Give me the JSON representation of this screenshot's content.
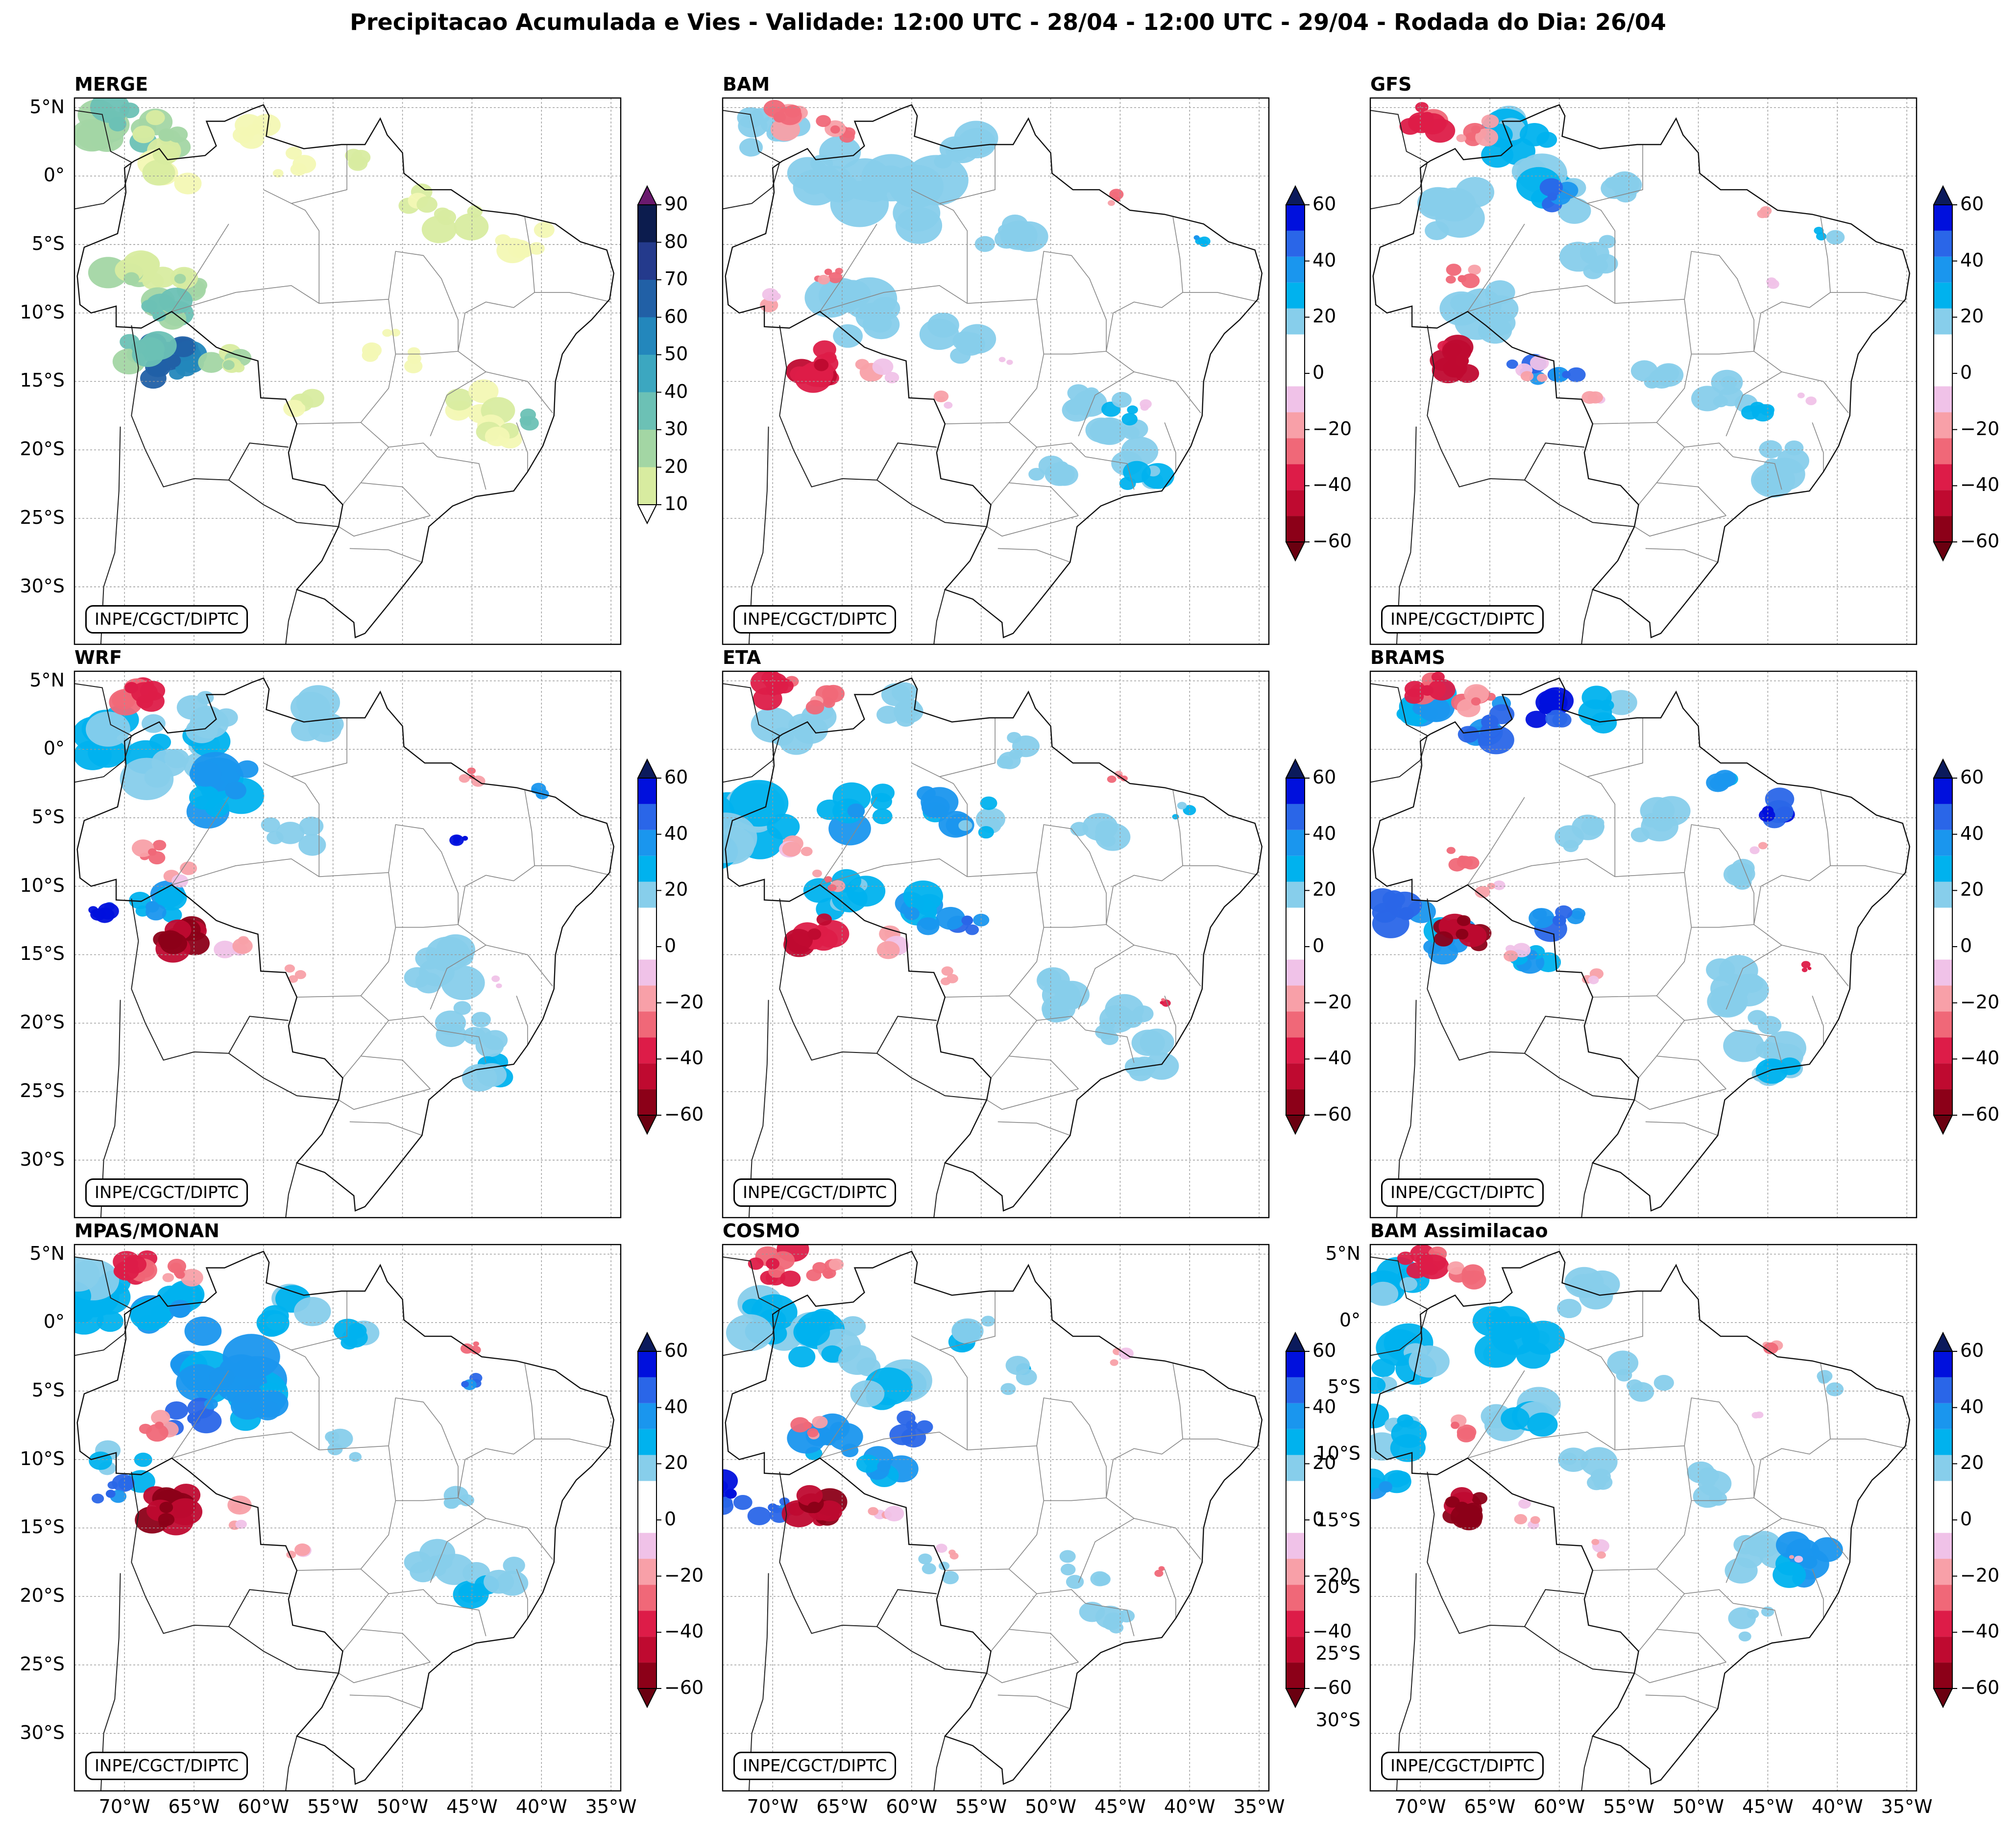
{
  "title": "Precipitacao Acumulada e Vies - Validade: 12:00 UTC - 28/04 - 12:00 UTC - 29/04 - Rodada do Dia: 26/04",
  "credit": "INPE/CGCT/DIPTC",
  "lat_labels": [
    "5°N",
    "0°",
    "5°S",
    "10°S",
    "15°S",
    "20°S",
    "25°S",
    "30°S"
  ],
  "lon_labels": [
    "70°W",
    "65°W",
    "60°W",
    "55°W",
    "50°W",
    "45°W",
    "40°W",
    "35°W"
  ],
  "panels": [
    {
      "title": "MERGE",
      "kind": "precip"
    },
    {
      "title": "BAM",
      "kind": "bias"
    },
    {
      "title": "GFS",
      "kind": "bias"
    },
    {
      "title": "WRF",
      "kind": "bias"
    },
    {
      "title": "ETA",
      "kind": "bias"
    },
    {
      "title": "BRAMS",
      "kind": "bias"
    },
    {
      "title": "MPAS/MONAN",
      "kind": "bias"
    },
    {
      "title": "COSMO",
      "kind": "bias"
    },
    {
      "title": "BAM Assimilacao",
      "kind": "bias"
    }
  ],
  "precip_scale": {
    "ticks": [
      "10",
      "20",
      "30",
      "40",
      "50",
      "60",
      "70",
      "80",
      "90"
    ],
    "colors": [
      "#f3f8b4",
      "#d8eca0",
      "#a3d6a4",
      "#6cc1b5",
      "#3ca7c0",
      "#2387bc",
      "#2160a6",
      "#243a8c",
      "#0c1c4e"
    ],
    "over_color": "#6a1a6e"
  },
  "bias_scale": {
    "ticks": [
      "60",
      "40",
      "20",
      "0",
      "−20",
      "−40",
      "−60"
    ],
    "colors_top_down": [
      "#0010dd",
      "#2a66e8",
      "#1a96ee",
      "#00b2ee",
      "#87ceeb",
      "#ffffff",
      "#ffffff",
      "#f0c2e8",
      "#f8a0a8",
      "#f06878",
      "#dd1c48",
      "#bf0a30",
      "#8c0018"
    ],
    "top_arrow_color": "#0b1a5c",
    "bottom_arrow_color": "#6a0010"
  }
}
